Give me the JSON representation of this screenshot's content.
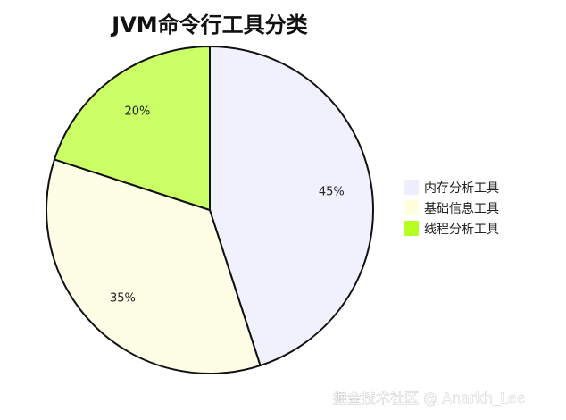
{
  "chart_data": {
    "type": "pie",
    "title": "JVM命令行工具分类",
    "slices": [
      {
        "name": "内存分析工具",
        "value": 45,
        "label": "45%",
        "color": "#f1f1fe"
      },
      {
        "name": "基础信息工具",
        "value": 35,
        "label": "35%",
        "color": "#fefee6"
      },
      {
        "name": "线程分析工具",
        "value": 20,
        "label": "20%",
        "color": "#cbff66"
      }
    ],
    "legend_position": "right",
    "grid": false,
    "slice_outline_color": "#111111"
  },
  "watermark": {
    "text": "掘金技术社区 @ Anarkh_Lee"
  },
  "colors": {
    "background": "#ffffff",
    "legend_swatch_1": "#eeeeff",
    "legend_swatch_2": "#ffffdd",
    "legend_swatch_3": "#b7ff22"
  }
}
